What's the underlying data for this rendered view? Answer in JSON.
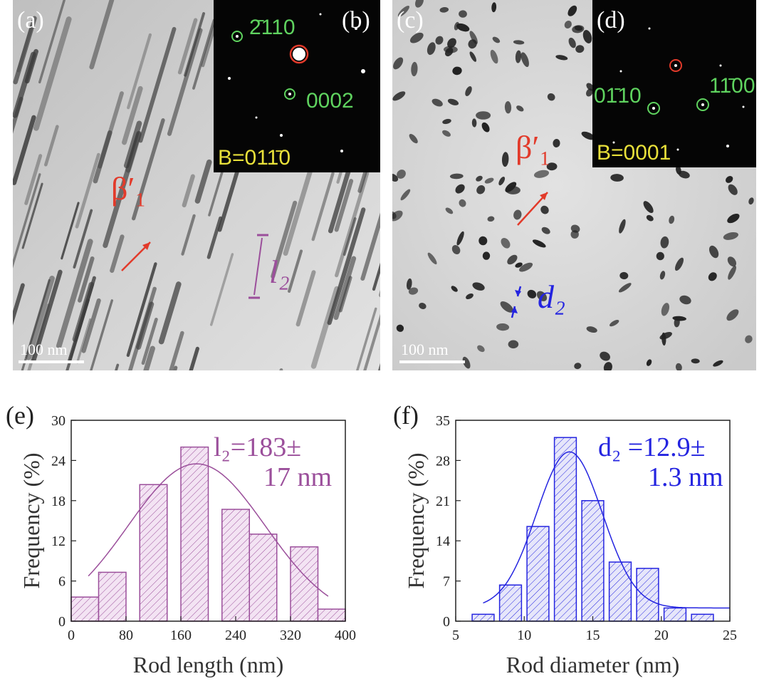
{
  "colors": {
    "purple": "#9b4f9b",
    "blue": "#2424e0",
    "red": "#e23a2a",
    "green": "#5fd35f",
    "yellow": "#e8e03a"
  },
  "panel_a": {
    "label": "(a)",
    "phase_label": "β′₁",
    "length_label": "l₂",
    "scale_text": "100 nm"
  },
  "panel_b": {
    "label": "(b)",
    "index_1": "2̄110",
    "index_2": "0002",
    "beam": "B=011̄0"
  },
  "panel_c": {
    "label": "(c)",
    "phase_label": "β′₁",
    "diameter_label": "d₂",
    "scale_text": "100 nm"
  },
  "panel_d": {
    "label": "(d)",
    "index_1": "01̄10",
    "index_2": "11̄00",
    "beam": "B=0001"
  },
  "chart_data": [
    {
      "panel": "(e)",
      "type": "bar",
      "xlabel": "Rod length (nm)",
      "ylabel": "Frequency (%)",
      "xlim": [
        0,
        400
      ],
      "ylim": [
        0,
        30
      ],
      "xticks": [
        "0",
        "80",
        "160",
        "240",
        "320",
        "400"
      ],
      "yticks": [
        "0",
        "6",
        "12",
        "18",
        "24",
        "30"
      ],
      "bin_width": 40,
      "bin_centers": [
        20,
        60,
        120,
        180,
        240,
        280,
        340,
        380
      ],
      "bin_widths": [
        40,
        40,
        40,
        40,
        40,
        40,
        40,
        40
      ],
      "values": [
        3.6,
        7.3,
        20.4,
        26.0,
        16.7,
        13.0,
        11.1,
        1.8
      ],
      "fit": {
        "type": "gaussian",
        "mean": 183,
        "sigma": 100,
        "amplitude": 23.5,
        "x_range": [
          25,
          375
        ]
      },
      "annotation_line1": "l₂=183±",
      "annotation_line2": "17 nm"
    },
    {
      "panel": "(f)",
      "type": "bar",
      "xlabel": "Rod diameter (nm)",
      "ylabel": "Frequency (%)",
      "xlim": [
        5,
        25
      ],
      "ylim": [
        0,
        35
      ],
      "xticks": [
        "5",
        "10",
        "15",
        "20",
        "25"
      ],
      "yticks": [
        "0",
        "7",
        "14",
        "21",
        "28",
        "35"
      ],
      "bin_centers": [
        7,
        9,
        11,
        13,
        15,
        17,
        19,
        21,
        23
      ],
      "bin_widths": [
        1.6,
        1.6,
        1.6,
        1.6,
        1.6,
        1.6,
        1.6,
        1.6,
        1.6
      ],
      "values": [
        1.2,
        6.3,
        16.5,
        32.0,
        21.0,
        10.3,
        9.2,
        2.3,
        1.2
      ],
      "fit": {
        "type": "gaussian",
        "mean": 13.3,
        "sigma": 2.4,
        "amplitude": 29.5,
        "baseline": 2.3,
        "x_range": [
          7,
          25
        ]
      },
      "annotation_line1": "d₂ =12.9±",
      "annotation_line2": "1.3 nm"
    }
  ]
}
